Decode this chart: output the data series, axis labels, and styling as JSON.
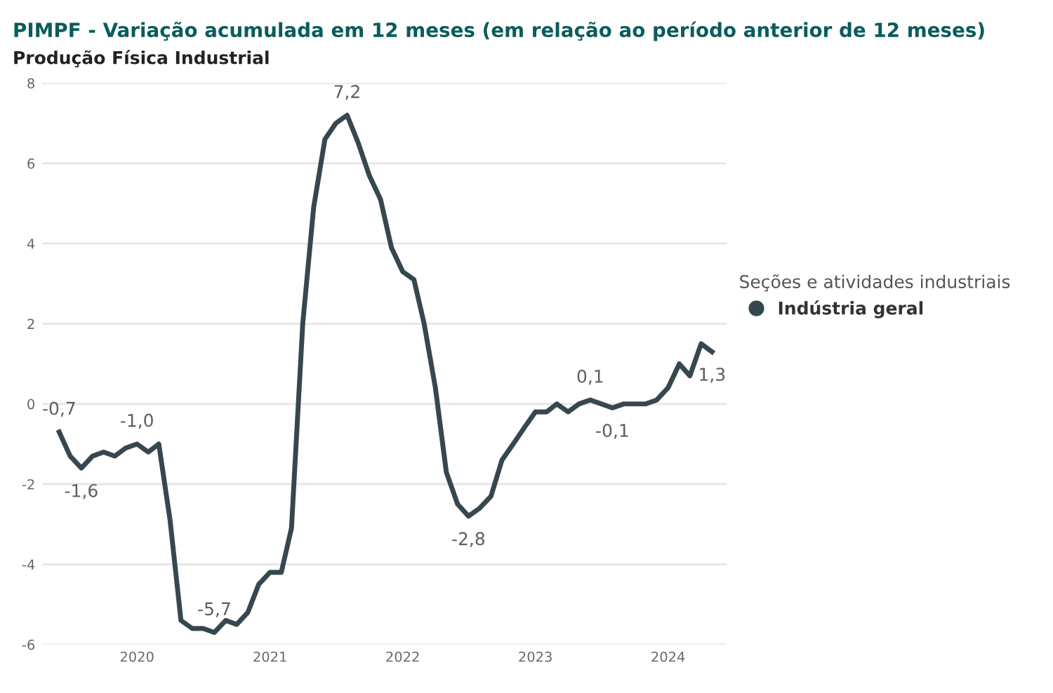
{
  "chart_data": {
    "type": "line",
    "title": "PIMPF - Variação acumulada em 12 meses (em relação ao período anterior de 12 meses)",
    "subtitle": "Produção Física Industrial",
    "legend_title": "Seções e atividades industriais",
    "legend": "right",
    "grid": "y",
    "x": [
      "2019-06",
      "2019-07",
      "2019-08",
      "2019-09",
      "2019-10",
      "2019-11",
      "2019-12",
      "2020-01",
      "2020-02",
      "2020-03",
      "2020-04",
      "2020-05",
      "2020-06",
      "2020-07",
      "2020-08",
      "2020-09",
      "2020-10",
      "2020-11",
      "2020-12",
      "2021-01",
      "2021-02",
      "2021-03",
      "2021-04",
      "2021-05",
      "2021-06",
      "2021-07",
      "2021-08",
      "2021-09",
      "2021-10",
      "2021-11",
      "2021-12",
      "2022-01",
      "2022-02",
      "2022-03",
      "2022-04",
      "2022-05",
      "2022-06",
      "2022-07",
      "2022-08",
      "2022-09",
      "2022-10",
      "2022-11",
      "2022-12",
      "2023-01",
      "2023-02",
      "2023-03",
      "2023-04",
      "2023-05",
      "2023-06",
      "2023-07",
      "2023-08",
      "2023-09",
      "2023-10",
      "2023-11",
      "2023-12",
      "2024-01",
      "2024-02",
      "2024-03",
      "2024-04",
      "2024-05"
    ],
    "xlim": [
      "2019-04-15",
      "2024-06-10"
    ],
    "xticks": [
      {
        "value": "2020-01",
        "label": "2020"
      },
      {
        "value": "2021-01",
        "label": "2021"
      },
      {
        "value": "2022-01",
        "label": "2022"
      },
      {
        "value": "2023-01",
        "label": "2023"
      },
      {
        "value": "2024-01",
        "label": "2024"
      }
    ],
    "ylim": [
      -6,
      8
    ],
    "yticks": [
      -6,
      -4,
      -2,
      0,
      2,
      4,
      6,
      8
    ],
    "series": [
      {
        "name": "Indústria geral",
        "color": "#37474f",
        "values": [
          -0.7,
          -1.3,
          -1.6,
          -1.3,
          -1.2,
          -1.3,
          -1.1,
          -1.0,
          -1.2,
          -1.0,
          -2.9,
          -5.4,
          -5.6,
          -5.6,
          -5.7,
          -5.4,
          -5.5,
          -5.2,
          -4.5,
          -4.2,
          -4.2,
          -3.1,
          2.0,
          4.9,
          6.6,
          7.0,
          7.2,
          6.5,
          5.7,
          5.1,
          3.9,
          3.3,
          3.1,
          2.0,
          0.4,
          -1.7,
          -2.5,
          -2.8,
          -2.6,
          -2.3,
          -1.4,
          -1.0,
          -0.6,
          -0.2,
          -0.2,
          0.0,
          -0.2,
          0.0,
          0.1,
          0.0,
          -0.1,
          0.0,
          0.0,
          0.0,
          0.1,
          0.4,
          1.0,
          0.7,
          1.5,
          1.3
        ],
        "value_labels": [
          "-0,7",
          null,
          "-1,6",
          null,
          null,
          null,
          null,
          "-1,0",
          null,
          null,
          null,
          null,
          null,
          null,
          "-5,7",
          null,
          null,
          null,
          null,
          null,
          null,
          null,
          null,
          null,
          null,
          null,
          "7,2",
          null,
          null,
          null,
          null,
          null,
          null,
          null,
          null,
          null,
          null,
          "-2,8",
          null,
          null,
          null,
          null,
          null,
          null,
          null,
          null,
          null,
          null,
          "0,1",
          null,
          "-0,1",
          null,
          null,
          null,
          null,
          null,
          null,
          null,
          null,
          "1,3"
        ]
      }
    ]
  }
}
